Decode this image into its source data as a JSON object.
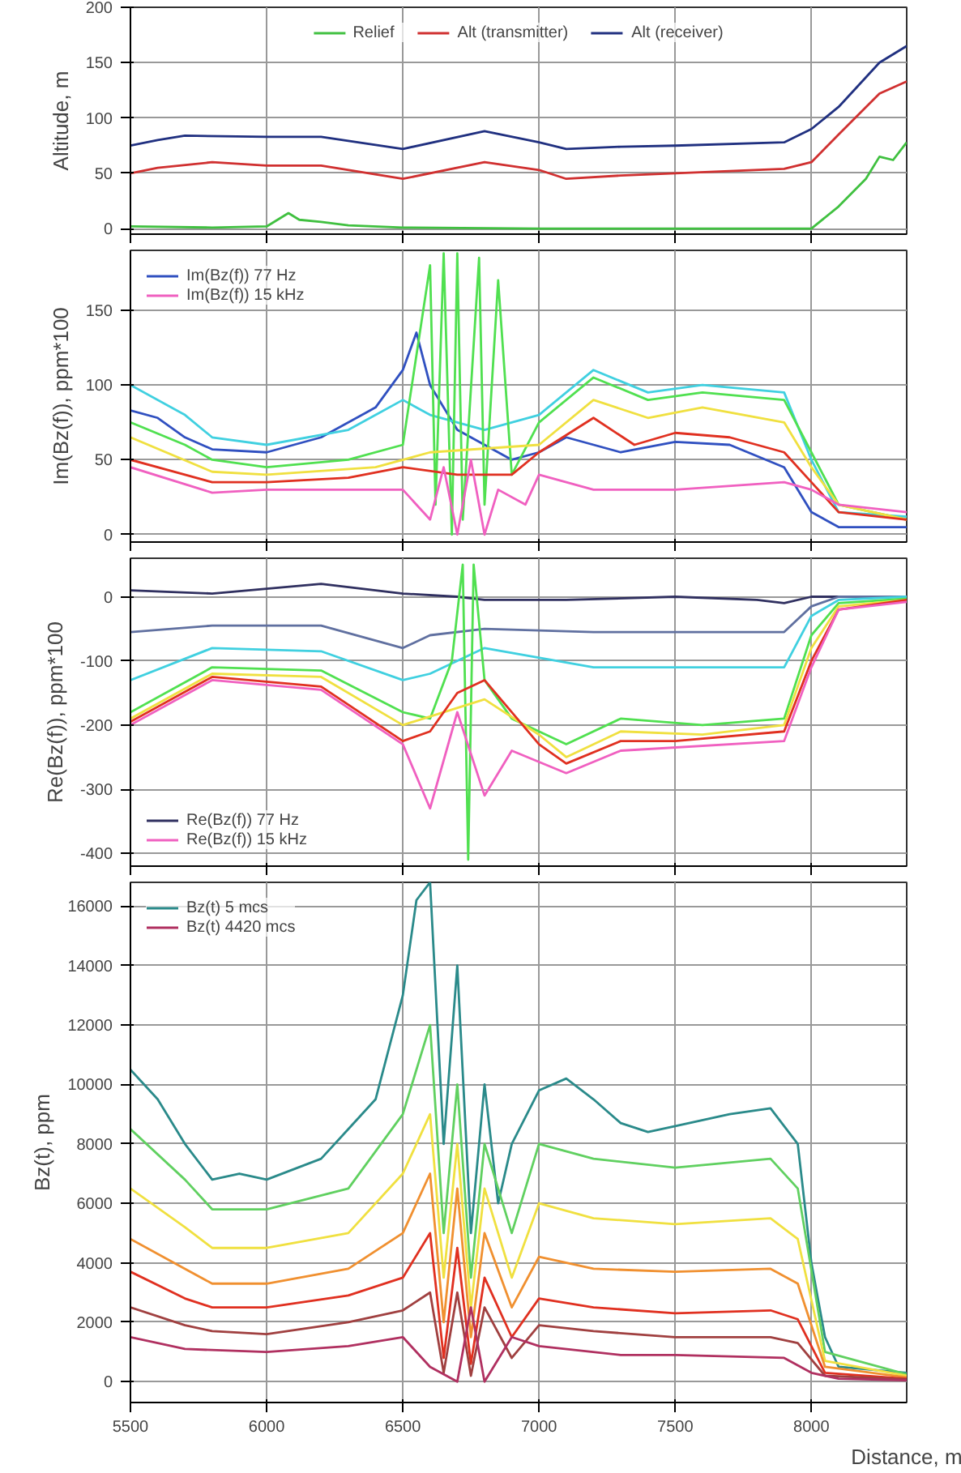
{
  "chart_data": [
    {
      "type": "line",
      "ylabel": "Altitude, m",
      "xlim": [
        5500,
        8350
      ],
      "xticks": [
        5500,
        6000,
        6500,
        7000,
        7500,
        8000
      ],
      "ylim": [
        -5,
        200
      ],
      "yticks": [
        0,
        50,
        100,
        150,
        200
      ],
      "grid": true,
      "legend": "top",
      "tick_labels": "y",
      "series": [
        {
          "name": "Relief",
          "color": "#40c040",
          "x": [
            5500,
            5800,
            6000,
            6080,
            6120,
            6200,
            6300,
            6500,
            7000,
            7500,
            8000,
            8100,
            8200,
            8250,
            8300,
            8350
          ],
          "values": [
            2,
            1,
            2,
            14,
            8,
            6,
            3,
            1,
            0,
            0,
            0,
            20,
            45,
            65,
            62,
            78
          ]
        },
        {
          "name": "Alt (transmitter)",
          "color": "#d03030",
          "x": [
            5500,
            5600,
            5800,
            6000,
            6200,
            6500,
            6800,
            7000,
            7100,
            7300,
            7500,
            7900,
            8000,
            8100,
            8250,
            8350
          ],
          "values": [
            50,
            55,
            60,
            57,
            57,
            45,
            60,
            53,
            45,
            48,
            50,
            54,
            60,
            85,
            122,
            133
          ]
        },
        {
          "name": "Alt (receiver)",
          "color": "#203080",
          "x": [
            5500,
            5600,
            5700,
            6000,
            6200,
            6500,
            6800,
            7000,
            7100,
            7300,
            7500,
            7900,
            8000,
            8100,
            8250,
            8350
          ],
          "values": [
            75,
            80,
            84,
            83,
            83,
            72,
            88,
            78,
            72,
            74,
            75,
            78,
            90,
            110,
            150,
            165
          ]
        }
      ]
    },
    {
      "type": "line",
      "ylabel": "Im(Bz(f)), ppm*100",
      "xlim": [
        5500,
        8350
      ],
      "xticks": [
        5500,
        6000,
        6500,
        7000,
        7500,
        8000
      ],
      "ylim": [
        -5,
        190
      ],
      "yticks": [
        0,
        50,
        100,
        150
      ],
      "grid": true,
      "legend": "top left",
      "tick_labels": "y",
      "series": [
        {
          "name": "Im(Bz(f)) 77 Hz",
          "color": "#3050c0",
          "x": [
            5500,
            5600,
            5700,
            5800,
            6000,
            6200,
            6400,
            6500,
            6550,
            6600,
            6700,
            6800,
            6900,
            7000,
            7100,
            7300,
            7500,
            7700,
            7900,
            8000,
            8100,
            8350
          ],
          "values": [
            83,
            78,
            65,
            57,
            55,
            65,
            85,
            110,
            135,
            100,
            70,
            60,
            50,
            55,
            65,
            55,
            62,
            60,
            45,
            15,
            5,
            5
          ]
        },
        {
          "color": "#40d0e0",
          "x": [
            5500,
            5700,
            5800,
            6000,
            6300,
            6500,
            6600,
            6800,
            7000,
            7200,
            7400,
            7600,
            7900,
            8000,
            8100,
            8350
          ],
          "values": [
            100,
            80,
            65,
            60,
            70,
            90,
            80,
            70,
            80,
            110,
            95,
            100,
            95,
            50,
            15,
            12
          ]
        },
        {
          "color": "#50e050",
          "x": [
            5500,
            5700,
            5800,
            6000,
            6300,
            6500,
            6600,
            6620,
            6650,
            6680,
            6700,
            6720,
            6780,
            6800,
            6850,
            6900,
            7000,
            7200,
            7400,
            7600,
            7900,
            8000,
            8100,
            8350
          ],
          "values": [
            75,
            60,
            50,
            45,
            50,
            60,
            180,
            20,
            188,
            0,
            188,
            10,
            185,
            20,
            170,
            40,
            75,
            105,
            90,
            95,
            90,
            55,
            20,
            10
          ]
        },
        {
          "color": "#f0e040",
          "x": [
            5500,
            5800,
            6000,
            6400,
            6600,
            7000,
            7200,
            7400,
            7600,
            7900,
            8000,
            8100,
            8350
          ],
          "values": [
            65,
            42,
            40,
            45,
            55,
            60,
            90,
            78,
            85,
            75,
            45,
            20,
            10
          ]
        },
        {
          "color": "#e03020",
          "x": [
            5500,
            5700,
            5800,
            6000,
            6300,
            6500,
            6700,
            6900,
            7000,
            7200,
            7350,
            7500,
            7700,
            7900,
            8000,
            8100,
            8350
          ],
          "values": [
            50,
            40,
            35,
            35,
            38,
            45,
            40,
            40,
            55,
            78,
            60,
            68,
            65,
            55,
            35,
            15,
            10
          ]
        },
        {
          "name": "Im(Bz(f)) 15 kHz",
          "color": "#f060c0",
          "x": [
            5500,
            5800,
            6000,
            6300,
            6500,
            6600,
            6650,
            6700,
            6750,
            6800,
            6850,
            6950,
            7000,
            7200,
            7500,
            7900,
            8000,
            8100,
            8350
          ],
          "values": [
            45,
            28,
            30,
            30,
            30,
            10,
            45,
            0,
            50,
            0,
            30,
            20,
            40,
            30,
            30,
            35,
            30,
            20,
            15
          ]
        }
      ]
    },
    {
      "type": "line",
      "ylabel": "Re(Bz(f)), ppm*100",
      "xlim": [
        5500,
        8350
      ],
      "xticks": [
        5500,
        6000,
        6500,
        7000,
        7500,
        8000
      ],
      "ylim": [
        -420,
        60
      ],
      "yticks": [
        -400,
        -300,
        -200,
        -100,
        0
      ],
      "grid": true,
      "legend": "bottom left",
      "tick_labels": "y",
      "series": [
        {
          "name": "Re(Bz(f)) 77 Hz",
          "color": "#303060",
          "x": [
            5500,
            5800,
            6200,
            6500,
            6700,
            6800,
            7100,
            7500,
            7800,
            7900,
            8000,
            8350
          ],
          "values": [
            10,
            5,
            20,
            5,
            0,
            -5,
            -5,
            0,
            -5,
            -10,
            0,
            0
          ]
        },
        {
          "color": "#6070a0",
          "x": [
            5500,
            5800,
            6200,
            6500,
            6600,
            6800,
            7200,
            7900,
            8000,
            8100,
            8350
          ],
          "values": [
            -55,
            -45,
            -45,
            -80,
            -60,
            -50,
            -55,
            -55,
            -15,
            0,
            0
          ]
        },
        {
          "color": "#40d0e0",
          "x": [
            5500,
            5800,
            6200,
            6500,
            6600,
            6800,
            7200,
            7900,
            8000,
            8100,
            8350
          ],
          "values": [
            -130,
            -80,
            -85,
            -130,
            -120,
            -80,
            -110,
            -110,
            -30,
            -5,
            0
          ]
        },
        {
          "color": "#50e050",
          "x": [
            5500,
            5800,
            6200,
            6500,
            6600,
            6680,
            6720,
            6740,
            6760,
            6800,
            6900,
            7100,
            7300,
            7600,
            7900,
            8000,
            8100,
            8350
          ],
          "values": [
            -180,
            -110,
            -115,
            -180,
            -190,
            -100,
            50,
            -410,
            50,
            -130,
            -190,
            -230,
            -190,
            -200,
            -190,
            -60,
            -10,
            -3
          ]
        },
        {
          "color": "#f0e040",
          "x": [
            5500,
            5800,
            6200,
            6500,
            6800,
            7000,
            7100,
            7300,
            7600,
            7900,
            8000,
            8100,
            8350
          ],
          "values": [
            -190,
            -120,
            -125,
            -200,
            -160,
            -215,
            -250,
            -210,
            -215,
            -200,
            -80,
            -15,
            -5
          ]
        },
        {
          "color": "#e03020",
          "x": [
            5500,
            5800,
            6200,
            6500,
            6600,
            6700,
            6800,
            7000,
            7100,
            7300,
            7500,
            7900,
            8000,
            8100,
            8350
          ],
          "values": [
            -195,
            -125,
            -140,
            -225,
            -210,
            -150,
            -130,
            -230,
            -260,
            -225,
            -225,
            -210,
            -100,
            -20,
            -5
          ]
        },
        {
          "name": "Re(Bz(f)) 15 kHz",
          "color": "#f060c0",
          "x": [
            5500,
            5800,
            6200,
            6500,
            6600,
            6700,
            6800,
            6900,
            7100,
            7300,
            7900,
            8000,
            8100,
            8350
          ],
          "values": [
            -200,
            -130,
            -145,
            -230,
            -330,
            -180,
            -310,
            -240,
            -275,
            -240,
            -225,
            -110,
            -20,
            -8
          ]
        }
      ]
    },
    {
      "type": "line",
      "ylabel": "Bz(t), ppm",
      "xlabel": "Distance, m",
      "xlim": [
        5500,
        8350
      ],
      "xticks": [
        5500,
        6000,
        6500,
        7000,
        7500,
        8000
      ],
      "ylim": [
        -700,
        16800
      ],
      "yticks": [
        0,
        2000,
        4000,
        6000,
        8000,
        10000,
        12000,
        14000,
        16000
      ],
      "grid": true,
      "legend": "top left",
      "series": [
        {
          "name": "Bz(t) 5 mcs",
          "color": "#2a8a8a",
          "x": [
            5500,
            5600,
            5700,
            5800,
            5900,
            6000,
            6200,
            6300,
            6400,
            6500,
            6550,
            6600,
            6650,
            6700,
            6750,
            6800,
            6850,
            6900,
            7000,
            7100,
            7200,
            7300,
            7400,
            7500,
            7700,
            7850,
            7950,
            8000,
            8050,
            8100,
            8350
          ],
          "values": [
            10500,
            9500,
            8000,
            6800,
            7000,
            6800,
            7500,
            8500,
            9500,
            13000,
            16200,
            16800,
            8000,
            14000,
            5000,
            10000,
            6000,
            8000,
            9800,
            10200,
            9500,
            8700,
            8400,
            8600,
            9000,
            9200,
            8000,
            4000,
            1500,
            500,
            300
          ]
        },
        {
          "color": "#60d060",
          "x": [
            5500,
            5700,
            5800,
            6000,
            6300,
            6500,
            6600,
            6650,
            6700,
            6750,
            6800,
            6900,
            7000,
            7200,
            7500,
            7850,
            7950,
            8050,
            8350
          ],
          "values": [
            8500,
            6800,
            5800,
            5800,
            6500,
            9000,
            12000,
            5000,
            10000,
            3500,
            8000,
            5000,
            8000,
            7500,
            7200,
            7500,
            6500,
            1000,
            250
          ]
        },
        {
          "color": "#f0e040",
          "x": [
            5500,
            5700,
            5800,
            6000,
            6300,
            6500,
            6600,
            6650,
            6700,
            6750,
            6800,
            6900,
            7000,
            7200,
            7500,
            7850,
            7950,
            8050,
            8350
          ],
          "values": [
            6500,
            5200,
            4500,
            4500,
            5000,
            7000,
            9000,
            3500,
            8000,
            2500,
            6500,
            3500,
            6000,
            5500,
            5300,
            5500,
            4800,
            700,
            200
          ]
        },
        {
          "color": "#f09030",
          "x": [
            5500,
            5700,
            5800,
            6000,
            6300,
            6500,
            6600,
            6650,
            6700,
            6750,
            6800,
            6900,
            7000,
            7200,
            7500,
            7850,
            7950,
            8050,
            8350
          ],
          "values": [
            4800,
            3800,
            3300,
            3300,
            3800,
            5000,
            7000,
            2000,
            6500,
            1500,
            5000,
            2500,
            4200,
            3800,
            3700,
            3800,
            3300,
            500,
            150
          ]
        },
        {
          "color": "#e03020",
          "x": [
            5500,
            5700,
            5800,
            6000,
            6300,
            6500,
            6600,
            6650,
            6700,
            6750,
            6800,
            6900,
            7000,
            7200,
            7500,
            7850,
            7950,
            8050,
            8350
          ],
          "values": [
            3700,
            2800,
            2500,
            2500,
            2900,
            3500,
            5000,
            800,
            4500,
            600,
            3500,
            1500,
            2800,
            2500,
            2300,
            2400,
            2100,
            300,
            100
          ]
        },
        {
          "color": "#a04040",
          "x": [
            5500,
            5700,
            5800,
            6000,
            6300,
            6500,
            6600,
            6650,
            6700,
            6750,
            6800,
            6900,
            7000,
            7200,
            7500,
            7850,
            7950,
            8050,
            8350
          ],
          "values": [
            2500,
            1900,
            1700,
            1600,
            2000,
            2400,
            3000,
            300,
            3000,
            200,
            2500,
            800,
            1900,
            1700,
            1500,
            1500,
            1300,
            200,
            80
          ]
        },
        {
          "name": "Bz(t) 4420 mcs",
          "color": "#b03060",
          "x": [
            5500,
            5700,
            6000,
            6300,
            6500,
            6600,
            6700,
            6750,
            6800,
            6900,
            7000,
            7300,
            7500,
            7900,
            8000,
            8100,
            8350
          ],
          "values": [
            1500,
            1100,
            1000,
            1200,
            1500,
            500,
            0,
            2500,
            0,
            1500,
            1200,
            900,
            900,
            800,
            300,
            100,
            50
          ]
        }
      ]
    }
  ]
}
